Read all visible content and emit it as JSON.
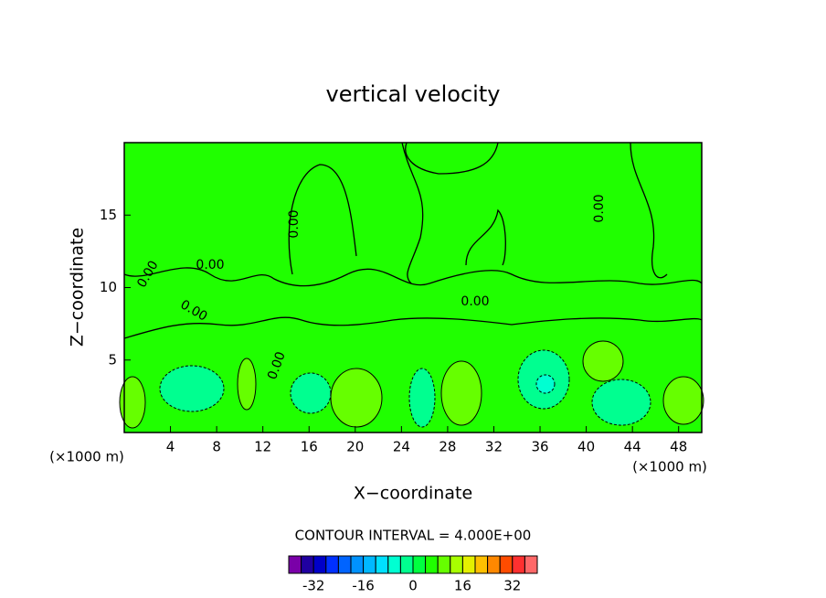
{
  "chart_data": {
    "type": "contour",
    "title": "vertical velocity",
    "xlabel": "X−coordinate",
    "ylabel": "Z−coordinate",
    "x_unit": "(×1000 m)",
    "y_unit": "(×1000 m)",
    "xlim": [
      0,
      50
    ],
    "ylim": [
      0,
      20
    ],
    "xticks": [
      4,
      8,
      12,
      16,
      20,
      24,
      28,
      32,
      36,
      40,
      44,
      48
    ],
    "yticks": [
      5,
      10,
      15
    ],
    "contour_interval": "CONTOUR INTERVAL = 4.000E+00",
    "contour_labels": [
      "0.00",
      "0.00",
      "0.00",
      "0.00",
      "0.00",
      "0.00",
      "0.00"
    ],
    "colorbar": {
      "levels": [
        -40,
        -36,
        -32,
        -28,
        -24,
        -20,
        -16,
        -12,
        -8,
        -4,
        0,
        4,
        8,
        12,
        16,
        20,
        24,
        28,
        32,
        36,
        40
      ],
      "colors": [
        "#7a00a8",
        "#2000a0",
        "#0000c8",
        "#0030ff",
        "#0064ff",
        "#0092ff",
        "#00b8ff",
        "#00e0ff",
        "#00ffd2",
        "#00ff90",
        "#00ff40",
        "#20ff00",
        "#66ff00",
        "#a8ff00",
        "#e4f000",
        "#ffc000",
        "#ff8800",
        "#ff4c00",
        "#ff3030",
        "#ff6868"
      ],
      "ticks": [
        -32,
        -16,
        0,
        16,
        32
      ]
    }
  }
}
